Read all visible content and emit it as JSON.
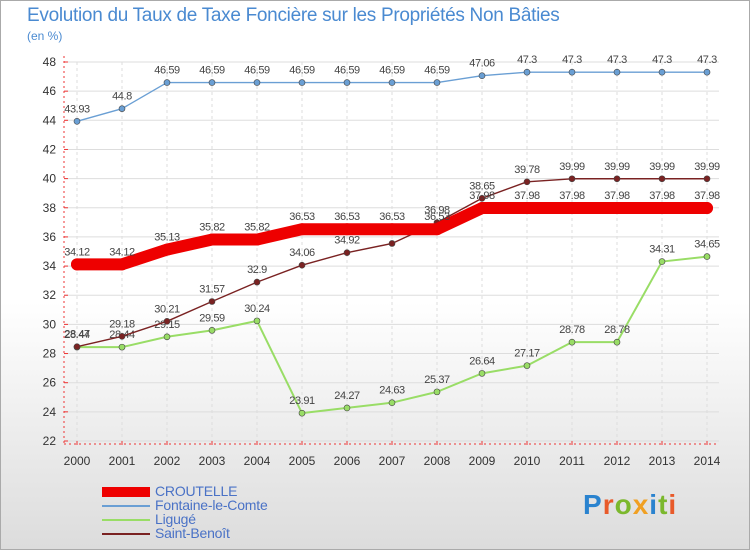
{
  "chart_data": {
    "type": "line",
    "title": "Evolution du Taux de Taxe Foncière sur les Propriétés Non Bâties",
    "ylabel": "(en %)",
    "xlabel": "",
    "ylim": [
      22,
      48
    ],
    "yticks": [
      22,
      24,
      26,
      28,
      30,
      32,
      34,
      36,
      38,
      40,
      42,
      44,
      46,
      48
    ],
    "categories": [
      "2000",
      "2001",
      "2002",
      "2003",
      "2004",
      "2005",
      "2006",
      "2007",
      "2008",
      "2009",
      "2010",
      "2011",
      "2012",
      "2013",
      "2014"
    ],
    "grid": true,
    "series": [
      {
        "name": "CROUTELLE",
        "color": "#ee0000",
        "values": [
          34.12,
          34.12,
          35.13,
          35.82,
          35.82,
          36.53,
          36.53,
          36.53,
          36.53,
          37.98,
          37.98,
          37.98,
          37.98,
          37.98,
          37.98
        ],
        "labels": [
          "34.12",
          "34.12",
          "35.13",
          "35.82",
          "35.82",
          "36.53",
          "36.53",
          "36.53",
          "36.53",
          "37.98",
          "37.98",
          "37.98",
          "37.98",
          "37.98",
          "37.98"
        ]
      },
      {
        "name": "Fontaine-le-Comte",
        "color": "#6a9fd4",
        "values": [
          43.93,
          44.8,
          46.59,
          46.59,
          46.59,
          46.59,
          46.59,
          46.59,
          46.59,
          47.06,
          47.3,
          47.3,
          47.3,
          47.3,
          47.3
        ],
        "labels": [
          "43.93",
          "44.8",
          "46.59",
          "46.59",
          "46.59",
          "46.59",
          "46.59",
          "46.59",
          "46.59",
          "47.06",
          "47.3",
          "47.3",
          "47.3",
          "47.3",
          "47.3"
        ]
      },
      {
        "name": "Ligugé",
        "color": "#99dd66",
        "values": [
          28.44,
          28.44,
          29.15,
          29.59,
          30.24,
          23.91,
          24.27,
          24.63,
          25.37,
          26.64,
          27.17,
          28.78,
          28.78,
          34.31,
          34.65
        ],
        "labels": [
          "28.44",
          "28.44",
          "29.15",
          "29.59",
          "30.24",
          "23.91",
          "24.27",
          "24.63",
          "25.37",
          "26.64",
          "27.17",
          "28.78",
          "28.78",
          "34.31",
          "34.65"
        ]
      },
      {
        "name": "Saint-Benoît",
        "color": "#7a2222",
        "values": [
          28.47,
          29.18,
          30.21,
          31.57,
          32.9,
          34.06,
          34.92,
          35.55,
          36.98,
          38.65,
          39.78,
          39.99,
          39.99,
          39.99,
          39.99
        ],
        "labels": [
          "28.47",
          "29.18",
          "30.21",
          "31.57",
          "32.9",
          "34.06",
          "34.92",
          "35.55",
          "36.98",
          "38.65",
          "39.78",
          "39.99",
          "39.99",
          "39.99",
          "39.99"
        ]
      }
    ]
  },
  "brand": {
    "logo_text": "Proxiti",
    "letter_colors": [
      "#2a83cf",
      "#e85a2a",
      "#7bb82d",
      "#f0a023",
      "#2a83cf",
      "#7bb82d",
      "#e85a2a"
    ]
  }
}
